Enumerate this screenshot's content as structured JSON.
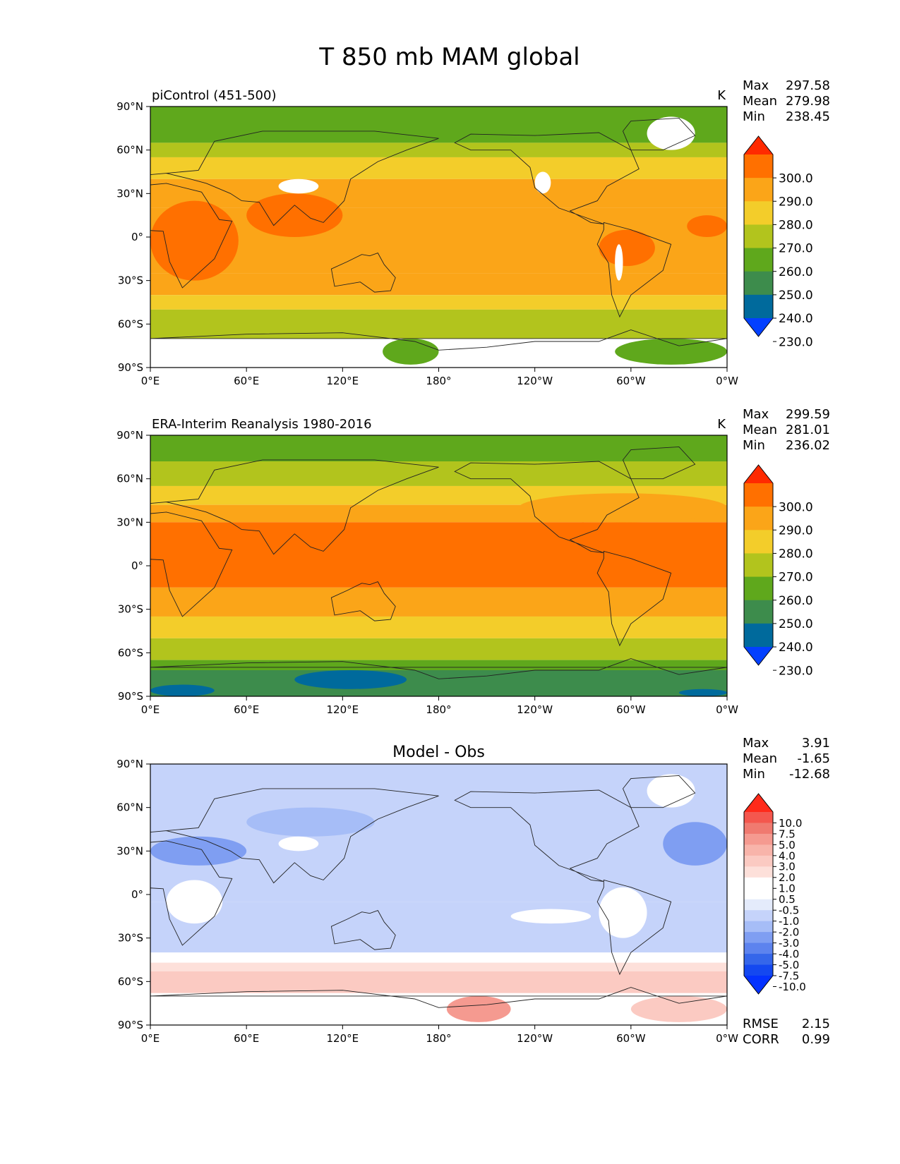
{
  "figure": {
    "title": "T 850 mb MAM global"
  },
  "chart_data": [
    {
      "type": "heatmap",
      "title": "piControl (451-500)",
      "units": "K",
      "stats": [
        {
          "label": "Max",
          "value": "297.58"
        },
        {
          "label": "Mean",
          "value": "279.98"
        },
        {
          "label": "Min",
          "value": "238.45"
        }
      ],
      "x_ticks": [
        "0°E",
        "60°E",
        "120°E",
        "180°",
        "120°W",
        "60°W",
        "0°W"
      ],
      "y_ticks": [
        "90°N",
        "60°N",
        "30°N",
        "0°",
        "30°S",
        "60°S",
        "90°S"
      ],
      "xlim": [
        0,
        360
      ],
      "ylim": [
        -90,
        90
      ],
      "legend_position": "right",
      "colorbar": {
        "labels": [
          "300.0",
          "290.0",
          "280.0",
          "270.0",
          "260.0",
          "250.0",
          "240.0",
          "230.0"
        ],
        "colors": [
          "#ff2a00",
          "#ff7000",
          "#fba518",
          "#f3cd2a",
          "#b2c41d",
          "#5fa81c",
          "#3d8c4c",
          "#006a9c",
          "#0340ff"
        ]
      },
      "bands": [
        {
          "lat": [
            65,
            90
          ],
          "color": "#5fa81c"
        },
        {
          "lat": [
            55,
            65
          ],
          "color": "#b2c41d"
        },
        {
          "lat": [
            40,
            55
          ],
          "color": "#f3cd2a"
        },
        {
          "lat": [
            20,
            40
          ],
          "color": "#fba518"
        },
        {
          "lat": [
            -25,
            20
          ],
          "color": "#fba518"
        },
        {
          "lat": [
            -40,
            -25
          ],
          "color": "#fba518"
        },
        {
          "lat": [
            -50,
            -40
          ],
          "color": "#f3cd2a"
        },
        {
          "lat": [
            -70,
            -50
          ],
          "color": "#b2c41d"
        },
        {
          "lat": [
            -90,
            -70
          ],
          "color": "#ffffff"
        }
      ],
      "patches": [
        {
          "lon": [
            0,
            55
          ],
          "lat": [
            -30,
            25
          ],
          "color": "#ff7000"
        },
        {
          "lon": [
            60,
            120
          ],
          "lat": [
            0,
            30
          ],
          "color": "#ff7000"
        },
        {
          "lon": [
            280,
            315
          ],
          "lat": [
            -20,
            5
          ],
          "color": "#ff7000"
        },
        {
          "lon": [
            335,
            360
          ],
          "lat": [
            0,
            15
          ],
          "color": "#ff7000"
        },
        {
          "lon": [
            145,
            180
          ],
          "lat": [
            -88,
            -70
          ],
          "color": "#5fa81c"
        },
        {
          "lon": [
            290,
            360
          ],
          "lat": [
            -88,
            -70
          ],
          "color": "#5fa81c"
        },
        {
          "lon": [
            310,
            340
          ],
          "lat": [
            60,
            83
          ],
          "color": "#ffffff"
        },
        {
          "lon": [
            80,
            105
          ],
          "lat": [
            30,
            40
          ],
          "color": "#ffffff"
        },
        {
          "lon": [
            240,
            250
          ],
          "lat": [
            30,
            45
          ],
          "color": "#ffffff"
        },
        {
          "lon": [
            290,
            295
          ],
          "lat": [
            -30,
            -5
          ],
          "color": "#ffffff"
        }
      ]
    },
    {
      "type": "heatmap",
      "title": "ERA-Interim Reanalysis 1980-2016",
      "units": "K",
      "stats": [
        {
          "label": "Max",
          "value": "299.59"
        },
        {
          "label": "Mean",
          "value": "281.01"
        },
        {
          "label": "Min",
          "value": "236.02"
        }
      ],
      "x_ticks": [
        "0°E",
        "60°E",
        "120°E",
        "180°",
        "120°W",
        "60°W",
        "0°W"
      ],
      "y_ticks": [
        "90°N",
        "60°N",
        "30°N",
        "0°",
        "30°S",
        "60°S",
        "90°S"
      ],
      "xlim": [
        0,
        360
      ],
      "ylim": [
        -90,
        90
      ],
      "legend_position": "right",
      "colorbar": {
        "labels": [
          "300.0",
          "290.0",
          "280.0",
          "270.0",
          "260.0",
          "250.0",
          "240.0",
          "230.0"
        ],
        "colors": [
          "#ff2a00",
          "#ff7000",
          "#fba518",
          "#f3cd2a",
          "#b2c41d",
          "#5fa81c",
          "#3d8c4c",
          "#006a9c",
          "#0340ff"
        ]
      },
      "bands": [
        {
          "lat": [
            72,
            90
          ],
          "color": "#5fa81c"
        },
        {
          "lat": [
            55,
            72
          ],
          "color": "#b2c41d"
        },
        {
          "lat": [
            42,
            55
          ],
          "color": "#f3cd2a"
        },
        {
          "lat": [
            30,
            42
          ],
          "color": "#fba518"
        },
        {
          "lat": [
            -15,
            30
          ],
          "color": "#ff7000"
        },
        {
          "lat": [
            -35,
            -15
          ],
          "color": "#fba518"
        },
        {
          "lat": [
            -50,
            -35
          ],
          "color": "#f3cd2a"
        },
        {
          "lat": [
            -65,
            -50
          ],
          "color": "#b2c41d"
        },
        {
          "lat": [
            -72,
            -65
          ],
          "color": "#5fa81c"
        },
        {
          "lat": [
            -90,
            -72
          ],
          "color": "#3d8c4c"
        }
      ],
      "patches": [
        {
          "lon": [
            0,
            40
          ],
          "lat": [
            -90,
            -82
          ],
          "color": "#006a9c"
        },
        {
          "lon": [
            90,
            160
          ],
          "lat": [
            -85,
            -72
          ],
          "color": "#006a9c"
        },
        {
          "lon": [
            330,
            360
          ],
          "lat": [
            -90,
            -85
          ],
          "color": "#006a9c"
        },
        {
          "lon": [
            200,
            290
          ],
          "lat": [
            -10,
            20
          ],
          "color": "#ff7000"
        },
        {
          "lon": [
            230,
            360
          ],
          "lat": [
            30,
            50
          ],
          "color": "#fba518"
        },
        {
          "lon": [
            255,
            285
          ],
          "lat": [
            10,
            30
          ],
          "color": "#ff7000"
        }
      ]
    },
    {
      "type": "heatmap",
      "title": "Model - Obs",
      "units": "",
      "stats": [
        {
          "label": "Max",
          "value": "3.91"
        },
        {
          "label": "Mean",
          "value": "-1.65"
        },
        {
          "label": "Min",
          "value": "-12.68"
        }
      ],
      "metrics": [
        {
          "label": "RMSE",
          "value": "2.15"
        },
        {
          "label": "CORR",
          "value": "0.99"
        }
      ],
      "x_ticks": [
        "0°E",
        "60°E",
        "120°E",
        "180°",
        "120°W",
        "60°W",
        "0°W"
      ],
      "y_ticks": [
        "90°N",
        "60°N",
        "30°N",
        "0°",
        "30°S",
        "60°S",
        "90°S"
      ],
      "xlim": [
        0,
        360
      ],
      "ylim": [
        -90,
        90
      ],
      "legend_position": "right",
      "colorbar": {
        "labels": [
          "10.0",
          "7.5",
          "5.0",
          "4.0",
          "3.0",
          "2.0",
          "1.0",
          "0.5",
          "-0.5",
          "-1.0",
          "-2.0",
          "-3.0",
          "-4.0",
          "-5.0",
          "-7.5",
          "-10.0"
        ],
        "colors": [
          "#ff2a1a",
          "#f4574e",
          "#f07a70",
          "#f59a90",
          "#f8b4aa",
          "#fbcac2",
          "#fde0da",
          "#ffffff",
          "#ffffff",
          "#e4ebfb",
          "#c5d3fa",
          "#a6bdf7",
          "#7f9ef2",
          "#5d83ee",
          "#3566ea",
          "#1448f0",
          "#0432ff"
        ]
      },
      "bands": [
        {
          "lat": [
            -5,
            90
          ],
          "color": "#c5d3fa"
        },
        {
          "lat": [
            -40,
            -5
          ],
          "color": "#c5d3fa"
        },
        {
          "lat": [
            -47,
            -40
          ],
          "color": "#ffffff"
        },
        {
          "lat": [
            -53,
            -47
          ],
          "color": "#fde0da"
        },
        {
          "lat": [
            -68,
            -53
          ],
          "color": "#fbcac2"
        },
        {
          "lat": [
            -90,
            -68
          ],
          "color": "#ffffff"
        }
      ],
      "patches": [
        {
          "lon": [
            0,
            60
          ],
          "lat": [
            20,
            40
          ],
          "color": "#7f9ef2"
        },
        {
          "lon": [
            60,
            140
          ],
          "lat": [
            40,
            60
          ],
          "color": "#a6bdf7"
        },
        {
          "lon": [
            320,
            360
          ],
          "lat": [
            20,
            50
          ],
          "color": "#7f9ef2"
        },
        {
          "lon": [
            10,
            45
          ],
          "lat": [
            -20,
            10
          ],
          "color": "#ffffff"
        },
        {
          "lon": [
            280,
            310
          ],
          "lat": [
            -30,
            5
          ],
          "color": "#ffffff"
        },
        {
          "lon": [
            225,
            275
          ],
          "lat": [
            -20,
            -10
          ],
          "color": "#ffffff"
        },
        {
          "lon": [
            185,
            225
          ],
          "lat": [
            -88,
            -70
          ],
          "color": "#f59a90"
        },
        {
          "lon": [
            300,
            360
          ],
          "lat": [
            -88,
            -70
          ],
          "color": "#fbcac2"
        },
        {
          "lon": [
            310,
            340
          ],
          "lat": [
            60,
            83
          ],
          "color": "#ffffff"
        },
        {
          "lon": [
            80,
            105
          ],
          "lat": [
            30,
            40
          ],
          "color": "#ffffff"
        }
      ]
    }
  ]
}
